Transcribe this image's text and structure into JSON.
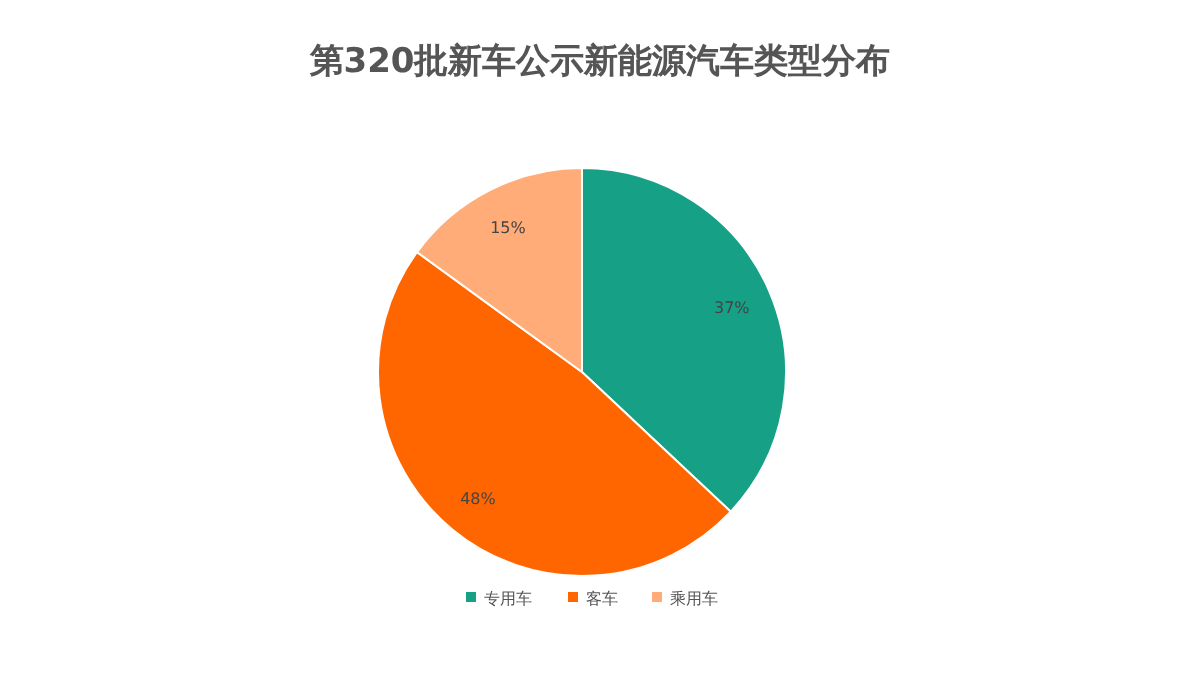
{
  "chart_data": {
    "type": "pie",
    "title": "第320批新车公示新能源汽车类型分布",
    "categories": [
      "专用车",
      "客车",
      "乘用车"
    ],
    "values": [
      37,
      48,
      15
    ],
    "colors": [
      "#16a085",
      "#ff6600",
      "#ffac78"
    ],
    "value_labels": [
      "37%",
      "48%",
      "15%"
    ],
    "legend": "bottom"
  }
}
